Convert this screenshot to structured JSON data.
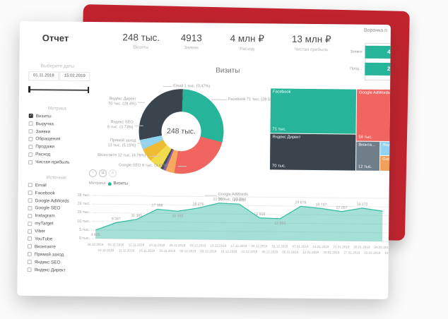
{
  "header": {
    "title": "Отчет",
    "kpis": [
      {
        "value": "248 тыс.",
        "label": "Визиты"
      },
      {
        "value": "4913",
        "label": "Заявки"
      },
      {
        "value": "4 млн ₽",
        "label": "Расход"
      },
      {
        "value": "13 млн ₽",
        "label": "Чистая прибыль"
      }
    ]
  },
  "sidebar": {
    "date": {
      "label": "Выберите даты",
      "start": "01.11.2018",
      "end": "15.02.2019"
    },
    "metric": {
      "title": "Метрика",
      "options": [
        {
          "label": "Визиты",
          "checked": true
        },
        {
          "label": "Выручка",
          "checked": false
        },
        {
          "label": "Заявки",
          "checked": false
        },
        {
          "label": "Обращения",
          "checked": false
        },
        {
          "label": "Продажи",
          "checked": false
        },
        {
          "label": "Расход",
          "checked": false
        },
        {
          "label": "Чистая прибыль",
          "checked": false
        }
      ]
    },
    "source": {
      "title": "Источник",
      "options": [
        {
          "label": "Email",
          "checked": false
        },
        {
          "label": "Facebook",
          "checked": false
        },
        {
          "label": "Google AdWords",
          "checked": false
        },
        {
          "label": "Google SEO",
          "checked": false
        },
        {
          "label": "Instagram",
          "checked": false
        },
        {
          "label": "myTarget",
          "checked": false
        },
        {
          "label": "Viber",
          "checked": false
        },
        {
          "label": "YouTube",
          "checked": false
        },
        {
          "label": "Вконтакте",
          "checked": false
        },
        {
          "label": "Прямой заход",
          "checked": false
        },
        {
          "label": "Яндекс SEO",
          "checked": false
        },
        {
          "label": "Яндекс Директ",
          "checked": false
        }
      ]
    }
  },
  "funnel": {
    "title": "Воронка п",
    "rows": [
      {
        "label": "Заявки",
        "value": "4"
      },
      {
        "label": "Прод...",
        "value": "2"
      }
    ]
  },
  "donut": {
    "title": "Визиты",
    "center": "248 тыс.",
    "labels": {
      "email": "Email 1 тыс. (0.47%)",
      "facebook": "Facebook 71 тыс. (28.53%)",
      "adwords1": "Google AdWords",
      "adwords2": "58 тыс. (23.5%)",
      "gseo": "Google SEO 8 тыс. (3.41%)",
      "vk": "ВКонтакте 12 тыс. (4.76%)",
      "direct1": "Прямой заход",
      "direct2": "13 тыс. (5.15%)",
      "yseo1": "Яндекс SEO",
      "yseo2": "9 тыс. (3.73%)",
      "yd1": "Яндекс Директ",
      "yd2": "70 тыс. (28.4%)"
    }
  },
  "area": {
    "legend_title": "Метрика",
    "legend_series": "Визиты",
    "drill_icons": [
      {
        "name": "drill-up-icon",
        "glyph": "↑",
        "dim": false
      },
      {
        "name": "drill-down-icon",
        "glyph": "⇊",
        "dim": false
      },
      {
        "name": "expand-next-level-icon",
        "glyph": "⋔",
        "dim": true
      }
    ]
  },
  "colors": {
    "accent_red_card": "#c3232e",
    "teal": "#26b59b",
    "charcoal": "#39444d",
    "salmon": "#f0655f",
    "area_fill": "rgba(38,181,155,0.42)",
    "area_line": "#2fbba2"
  },
  "chart_data": [
    {
      "type": "pie",
      "title": "Визиты",
      "center_label": "248 тыс.",
      "slices": [
        {
          "name": "Email",
          "value_label": "1 тыс.",
          "pct": 0.47,
          "color": "#3f4d56"
        },
        {
          "name": "Facebook",
          "value_label": "71 тыс.",
          "pct": 28.53,
          "color": "#26b59b"
        },
        {
          "name": "Google AdWords",
          "value_label": "58 тыс.",
          "pct": 23.5,
          "color": "#f0655f"
        },
        {
          "name": "Google SEO",
          "value_label": "8 тыс.",
          "pct": 3.41,
          "color": "#f6a95c"
        },
        {
          "name": "",
          "value_label": "",
          "pct": 1.0,
          "color": "#8f5f9e"
        },
        {
          "name": "",
          "value_label": "",
          "pct": 1.05,
          "color": "#434f58"
        },
        {
          "name": "ВКонтакте",
          "value_label": "12 тыс.",
          "pct": 4.76,
          "color": "#f2dc4e"
        },
        {
          "name": "Прямой заход",
          "value_label": "13 тыс.",
          "pct": 5.15,
          "color": "#eebc33"
        },
        {
          "name": "Яндекс SEO",
          "value_label": "9 тыс.",
          "pct": 3.73,
          "color": "#92d4f0"
        },
        {
          "name": "Яндекс Директ",
          "value_label": "70 тыс.",
          "pct": 28.4,
          "color": "#39444d"
        }
      ]
    },
    {
      "type": "treemap",
      "blocks": [
        {
          "name": "Facebook",
          "value": "71 тыс.",
          "color": "#26b59b"
        },
        {
          "name": "Яндекс Директ",
          "value": "70 тыс.",
          "color": "#39444d"
        },
        {
          "name": "Google AdWords",
          "value": "58 тыс.",
          "color": "#f0655f"
        },
        {
          "name": "Вконта...",
          "value": "12 тыс.",
          "color": "#707e8a"
        },
        {
          "name": "Янд...",
          "value": "",
          "color": "#8fd2f1"
        },
        {
          "name": "Goog...",
          "value": "",
          "color": "#f3a05a"
        }
      ]
    },
    {
      "type": "bar",
      "title": "Воронка п",
      "orientation": "horizontal",
      "categories": [
        "Заявки",
        "Прод..."
      ],
      "visible_values": [
        "4",
        "2"
      ]
    },
    {
      "type": "area",
      "ylim": [
        0,
        25000
      ],
      "y_ticks": [
        "25 тыс.",
        "20 тыс.",
        "15 тыс.",
        "10 тыс.",
        "5 тыс.",
        "0 тыс."
      ],
      "series": [
        {
          "name": "Визиты",
          "values": [
            4925,
            9347,
            11385,
            17388,
            16332,
            18276,
            21280,
            20832,
            12918,
            12563,
            19876,
            18747,
            17057,
            19172,
            17500
          ],
          "value_labels": [
            "4 925",
            "9 347",
            "11 385",
            "17 388",
            "16 332",
            "18 276",
            "21 280",
            "20 832",
            "12 918",
            "12 563",
            "19 876",
            "18 747",
            "17 057",
            "19 172",
            ""
          ]
        }
      ],
      "x_week_start": [
        "29.10.2018",
        "05.11.2018",
        "12.11.2018",
        "19.11.2018",
        "26.11.2018",
        "03.12.2018",
        "10.12.2018",
        "17.12.2018",
        "24.12.2018",
        "31.12.2018",
        "07.01.2019",
        "14.01.2019",
        "21.01.2019",
        "28.01.2019",
        "04.02.2019"
      ],
      "x_week_end": [
        "04.11.2018",
        "11.11.2018",
        "18.11.2018",
        "25.11.2018",
        "02.12.2018",
        "09.12.2018",
        "16.12.2018",
        "23.12.2018",
        "30.12.2018",
        "06.01.2019",
        "13.01.2019",
        "20.01.2019",
        "27.01.2019",
        "03.02.2019",
        "10.02.2019"
      ]
    }
  ]
}
